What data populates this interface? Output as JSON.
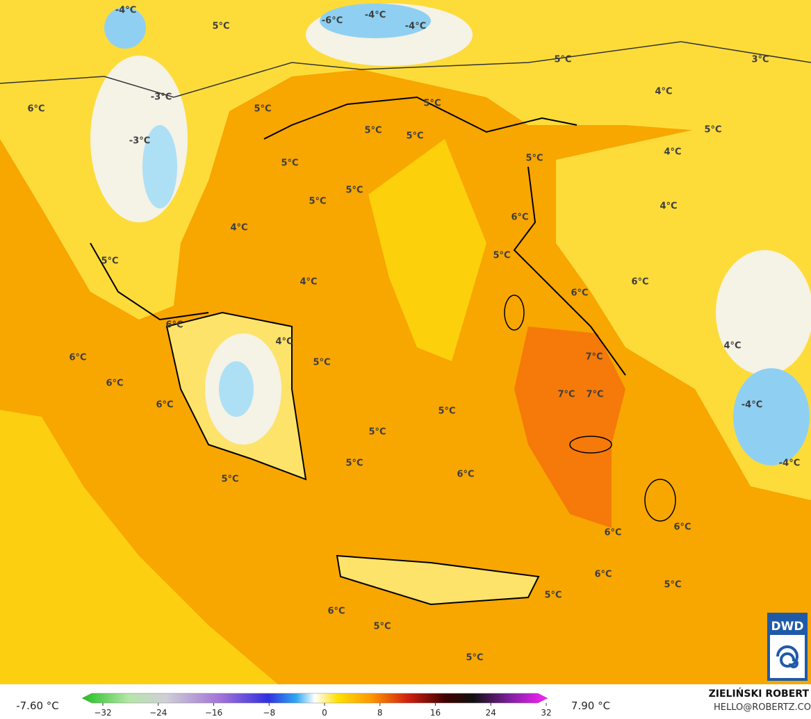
{
  "map": {
    "labels": [
      "-4°C",
      "5°C",
      "-6°C",
      "-4°C",
      "-4°C",
      "5°C",
      "3°C",
      "-3°C",
      "6°C",
      "5°C",
      "5°C",
      "4°C",
      "5°C",
      "5°C",
      "5°C",
      "-3°C",
      "4°C",
      "5°C",
      "5°C",
      "5°C",
      "5°C",
      "4°C",
      "6°C",
      "4°C",
      "5°C",
      "5°C",
      "4°C",
      "6°C",
      "6°C",
      "6°C",
      "4°C",
      "4°C",
      "6°C",
      "5°C",
      "7°C",
      "6°C",
      "7°C",
      "7°C",
      "6°C",
      "-4°C",
      "5°C",
      "5°C",
      "-4°C",
      "5°C",
      "6°C",
      "5°C",
      "6°C",
      "6°C",
      "6°C",
      "5°C",
      "5°C",
      "6°C",
      "5°C",
      "5°C"
    ]
  },
  "colorbar": {
    "min_label": "-7.60 °C",
    "max_label": "7.90 °C",
    "ticks": [
      {
        "value": -32,
        "label": "−32"
      },
      {
        "value": -24,
        "label": "−24"
      },
      {
        "value": -16,
        "label": "−16"
      },
      {
        "value": -8,
        "label": "−8"
      },
      0,
      8,
      16,
      24,
      32
    ]
  },
  "credit": {
    "author": "ZIELIŃSKI ROBERT",
    "email": "HELLO@ROBERTZ.CO"
  },
  "logo": "DWD"
}
